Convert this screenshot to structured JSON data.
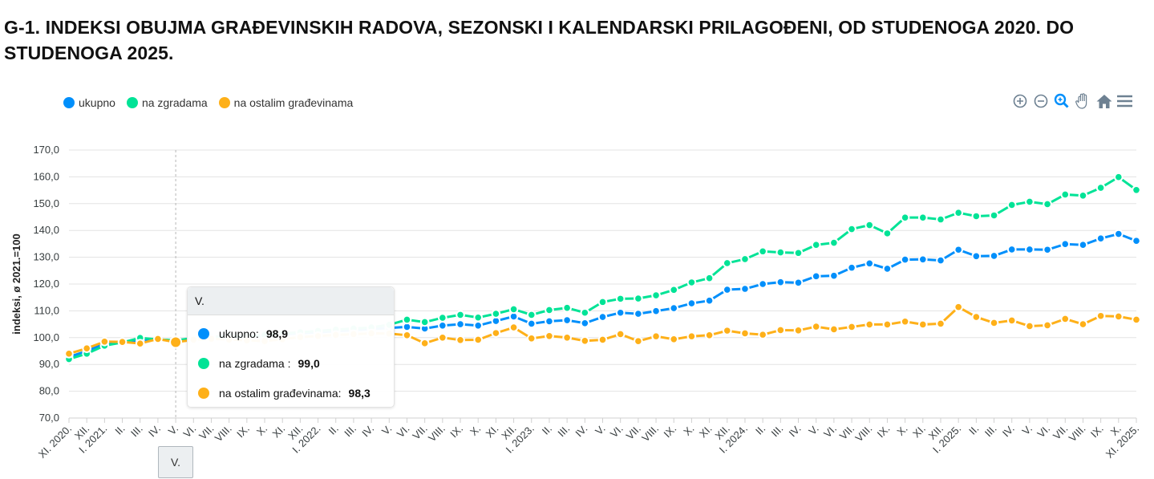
{
  "title": "G-1. INDEKSI OBUJMA GRAĐEVINSKIH RADOVA, SEZONSKI I KALENDARSKI PRILAGOĐENI, OD STUDENOGA 2020. DO STUDENOGA 2025.",
  "toolbar": [
    "zoom-in-icon",
    "zoom-out-icon",
    "selection-zoom-icon",
    "pan-hand-icon",
    "home-reset-icon",
    "menu-icon"
  ],
  "tooltip": {
    "header": "V.",
    "rows": [
      {
        "label": "ukupno:",
        "value": "98,9",
        "color": "#008FFB"
      },
      {
        "label": "na zgradama :",
        "value": "99,0",
        "color": "#00E396"
      },
      {
        "label": "na ostalim građevinama:",
        "value": "98,3",
        "color": "#FEB019"
      }
    ]
  },
  "chart_data": {
    "type": "line",
    "title": "G-1. INDEKSI OBUJMA GRAĐEVINSKIH RADOVA, SEZONSKI I KALENDARSKI PRILAGOĐENI, OD STUDENOGA 2020. DO STUDENOGA 2025.",
    "ylabel": "indeksi, ø 2021.=100",
    "xlabel": "",
    "ylim": [
      70,
      170
    ],
    "yticks": [
      "70,0",
      "80,0",
      "90,0",
      "100,0",
      "110,0",
      "120,0",
      "130,0",
      "140,0",
      "150,0",
      "160,0",
      "170,0"
    ],
    "grid": true,
    "legend_position": "top-left",
    "categories": [
      "XI. 2020.",
      "XII.",
      "I. 2021.",
      "II.",
      "III.",
      "IV.",
      "V.",
      "VI.",
      "VII.",
      "VIII.",
      "IX.",
      "X.",
      "XI.",
      "XII.",
      "I. 2022.",
      "II.",
      "III.",
      "IV.",
      "V.",
      "VI.",
      "VII.",
      "VIII.",
      "IX.",
      "X.",
      "XI.",
      "XII.",
      "I. 2023.",
      "II.",
      "III.",
      "IV.",
      "V.",
      "VI.",
      "VII.",
      "VIII.",
      "IX.",
      "X.",
      "XI.",
      "XII.",
      "I. 2024.",
      "II.",
      "III.",
      "IV.",
      "V.",
      "VI.",
      "VII.",
      "VIII.",
      "IX.",
      "X.",
      "XI.",
      "XII.",
      "I. 2025.",
      "II.",
      "III.",
      "IV.",
      "V.",
      "VI.",
      "VII.",
      "VIII.",
      "IX.",
      "X.",
      "XI. 2025."
    ],
    "series": [
      {
        "name": "ukupno",
        "color": "#008FFB",
        "values": [
          92.8,
          95.0,
          97.7,
          98.3,
          99.0,
          99.3,
          98.9,
          99.6,
          100.0,
          100.4,
          100.3,
          100.8,
          101.2,
          101.6,
          102.0,
          102.4,
          102.8,
          103.2,
          103.6,
          104.0,
          103.4,
          104.5,
          105.0,
          104.5,
          106.2,
          107.9,
          105.2,
          106.1,
          106.5,
          105.4,
          107.7,
          109.3,
          108.9,
          109.9,
          111.0,
          112.8,
          113.8,
          117.9,
          118.2,
          120.0,
          120.7,
          120.5,
          122.9,
          123.1,
          126.1,
          127.7,
          125.7,
          129.1,
          129.2,
          128.8,
          132.8,
          130.4,
          130.5,
          132.9,
          132.9,
          132.8,
          134.9,
          134.6,
          137.0,
          138.7,
          136.1
        ]
      },
      {
        "name": "na zgradama",
        "color": "#00E396",
        "values": [
          92.0,
          94.0,
          97.0,
          98.2,
          99.9,
          99.3,
          99.0,
          99.8,
          100.3,
          100.6,
          100.5,
          101.0,
          101.6,
          102.0,
          102.5,
          103.0,
          103.4,
          103.8,
          104.8,
          106.7,
          105.8,
          107.4,
          108.5,
          107.5,
          108.9,
          110.6,
          108.5,
          110.3,
          111.1,
          109.3,
          113.3,
          114.5,
          114.6,
          115.8,
          117.8,
          120.6,
          122.2,
          127.8,
          129.3,
          132.2,
          131.8,
          131.6,
          134.6,
          135.4,
          140.5,
          142.0,
          138.9,
          144.8,
          144.8,
          144.1,
          146.6,
          145.3,
          145.6,
          149.5,
          150.7,
          149.8,
          153.4,
          153.0,
          155.9,
          159.9,
          155.1
        ]
      },
      {
        "name": "na ostalim građevinama",
        "color": "#FEB019",
        "values": [
          94.0,
          96.0,
          98.5,
          98.4,
          97.8,
          99.5,
          98.3,
          99.2,
          99.6,
          99.3,
          99.0,
          98.7,
          99.4,
          100.2,
          100.6,
          101.0,
          101.3,
          101.6,
          101.5,
          100.9,
          97.9,
          100.0,
          99.1,
          99.2,
          101.7,
          103.8,
          99.7,
          100.6,
          100.0,
          98.8,
          99.2,
          101.3,
          98.7,
          100.5,
          99.4,
          100.5,
          100.9,
          102.6,
          101.6,
          101.1,
          102.8,
          102.7,
          104.1,
          103.1,
          104.0,
          104.9,
          104.9,
          106.0,
          104.9,
          105.2,
          111.4,
          107.7,
          105.5,
          106.4,
          104.3,
          104.6,
          107.0,
          105.0,
          108.1,
          107.9,
          106.7
        ]
      }
    ],
    "highlighted_category": "V."
  }
}
